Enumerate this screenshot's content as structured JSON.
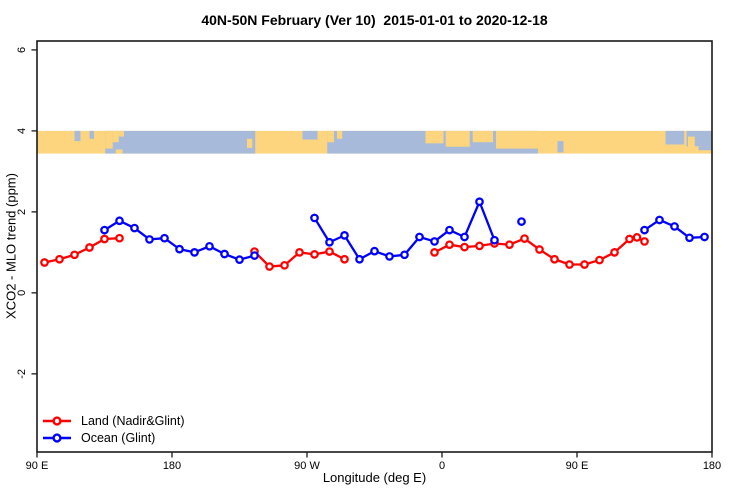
{
  "figure": {
    "title": "40N-50N February (Ver 10)  2015-01-01 to 2020-12-18"
  },
  "legend": {
    "items": [
      {
        "label": "Land (Nadir&Glint)",
        "color": "#ff0000",
        "icon": "open-circle-line"
      },
      {
        "label": "Ocean (Glint)",
        "color": "#0000ff",
        "icon": "open-circle-line"
      }
    ]
  },
  "chart_data": {
    "type": "line",
    "title": "40N-50N February (Ver 10)  2015-01-01 to 2020-12-18",
    "xlabel": "Longitude (deg E)",
    "ylabel": "XCO2 - MLO trend (ppm)",
    "xlim": [
      90,
      540
    ],
    "ylim": [
      -3.93,
      6.22
    ],
    "grid": false,
    "legend_position": "bottom-left-inside",
    "x_ticks": [
      {
        "pos": 90,
        "label": "90 E"
      },
      {
        "pos": 180,
        "label": "180"
      },
      {
        "pos": 270,
        "label": "90 W"
      },
      {
        "pos": 360,
        "label": "0"
      },
      {
        "pos": 450,
        "label": "90 E"
      },
      {
        "pos": 540,
        "label": "180"
      }
    ],
    "y_ticks": [
      {
        "pos": 6,
        "label": "6"
      },
      {
        "pos": 4,
        "label": "4"
      },
      {
        "pos": 2,
        "label": "2"
      },
      {
        "pos": 0,
        "label": "0"
      },
      {
        "pos": -2,
        "label": "-2"
      }
    ],
    "series": [
      {
        "name": "Land (Nadir&Glint)",
        "color": "#ff0000",
        "marker": "open-circle",
        "segments": [
          [
            [
              95,
              0.75
            ],
            [
              105,
              0.83
            ],
            [
              115,
              0.94
            ],
            [
              125,
              1.12
            ],
            [
              135,
              1.33
            ],
            [
              145,
              1.35
            ]
          ],
          [
            [
              235,
              1.02
            ],
            [
              245,
              0.65
            ],
            [
              255,
              0.68
            ],
            [
              265,
              1.0
            ],
            [
              275,
              0.95
            ],
            [
              285,
              1.02
            ],
            [
              295,
              0.83
            ]
          ],
          [
            [
              355,
              1.0
            ],
            [
              365,
              1.19
            ],
            [
              375,
              1.13
            ],
            [
              385,
              1.16
            ],
            [
              395,
              1.22
            ],
            [
              405,
              1.19
            ],
            [
              415,
              1.34
            ],
            [
              425,
              1.07
            ],
            [
              435,
              0.83
            ],
            [
              445,
              0.7
            ],
            [
              455,
              0.7
            ],
            [
              465,
              0.81
            ],
            [
              475,
              1.0
            ],
            [
              485,
              1.33
            ],
            [
              490,
              1.37
            ],
            [
              495,
              1.27
            ]
          ]
        ],
        "isolated_points": []
      },
      {
        "name": "Ocean (Glint)",
        "color": "#0000ff",
        "marker": "open-circle",
        "segments": [
          [
            [
              135,
              1.55
            ],
            [
              145,
              1.78
            ],
            [
              155,
              1.6
            ],
            [
              165,
              1.32
            ],
            [
              175,
              1.35
            ],
            [
              185,
              1.08
            ],
            [
              195,
              1.0
            ],
            [
              205,
              1.15
            ],
            [
              215,
              0.96
            ],
            [
              225,
              0.82
            ],
            [
              235,
              0.92
            ]
          ],
          [
            [
              275,
              1.85
            ],
            [
              285,
              1.25
            ],
            [
              295,
              1.42
            ],
            [
              305,
              0.83
            ],
            [
              315,
              1.03
            ],
            [
              325,
              0.9
            ],
            [
              335,
              0.94
            ],
            [
              345,
              1.38
            ],
            [
              355,
              1.27
            ],
            [
              365,
              1.55
            ],
            [
              375,
              1.38
            ],
            [
              385,
              2.25
            ],
            [
              395,
              1.3
            ]
          ],
          [
            [
              495,
              1.55
            ],
            [
              505,
              1.8
            ],
            [
              515,
              1.64
            ],
            [
              525,
              1.36
            ],
            [
              535,
              1.38
            ]
          ]
        ],
        "isolated_points": [
          [
            413,
            1.76
          ]
        ]
      }
    ],
    "map_band": {
      "v_top": 4.0,
      "v_bottom": 3.44,
      "land_color": "#fdd57e",
      "ocean_color": "#a7bad9",
      "base": "land",
      "rects": [
        [
          115,
          119,
          0,
          0.45,
          "ocean"
        ],
        [
          125,
          128,
          0,
          0.35,
          "ocean"
        ],
        [
          135.5,
          235.5,
          0,
          1,
          "ocean"
        ],
        [
          267,
          277,
          0,
          0.38,
          "ocean"
        ],
        [
          283.5,
          348,
          0,
          1,
          "ocean"
        ],
        [
          348,
          424,
          0,
          1,
          "ocean"
        ],
        [
          437,
          441,
          0.45,
          0.95,
          "ocean"
        ],
        [
          509,
          521.5,
          0,
          0.6,
          "ocean"
        ],
        [
          523,
          540,
          0,
          0.68,
          "ocean"
        ],
        [
          531,
          540,
          0.68,
          0.85,
          "ocean"
        ],
        [
          135.5,
          140.5,
          0,
          0.78,
          "land"
        ],
        [
          140.5,
          144.5,
          0,
          0.5,
          "land"
        ],
        [
          144.5,
          148,
          0,
          0.25,
          "land"
        ],
        [
          142.5,
          147,
          0.82,
          1,
          "land"
        ],
        [
          230,
          233.5,
          0.35,
          0.75,
          "land"
        ],
        [
          283.5,
          288,
          0,
          0.5,
          "land"
        ],
        [
          290,
          293.5,
          0,
          0.35,
          "land"
        ],
        [
          349,
          361,
          0,
          0.55,
          "land"
        ],
        [
          362.5,
          378.5,
          0,
          0.7,
          "land"
        ],
        [
          380.5,
          394,
          0,
          0.5,
          "land"
        ],
        [
          396,
          424,
          0,
          0.78,
          "land"
        ],
        [
          524,
          528.5,
          0.25,
          0.8,
          "land"
        ]
      ]
    },
    "style": {
      "line_width": 2.3,
      "marker_radius": 3.2,
      "marker_fill": "#ffffff",
      "box_color": "#1a1a1a",
      "tick_label_size": 11
    }
  }
}
